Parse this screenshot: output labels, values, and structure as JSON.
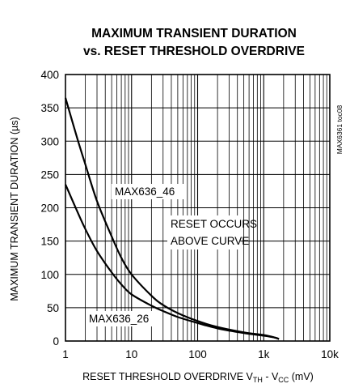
{
  "chart_data": {
    "type": "line",
    "title_line1": "MAXIMUM TRANSIENT DURATION",
    "title_line2": "vs. RESET THRESHOLD OVERDRIVE",
    "xlabel": "RESET THRESHOLD OVERDRIVE V",
    "xlabel_parts": {
      "a": "RESET THRESHOLD OVERDRIVE V",
      "a_sub": "TH",
      "b": " - V",
      "b_sub": "CC",
      "c": " (mV)"
    },
    "ylabel": "MAXIMUM TRANSIENT DURATION (µs)",
    "side_label": "MAX6361 toc08",
    "x_scale": "log",
    "xlim": [
      1,
      10000
    ],
    "ylim": [
      0,
      400
    ],
    "x_ticks": [
      {
        "value": 1,
        "label": "1"
      },
      {
        "value": 10,
        "label": "10"
      },
      {
        "value": 100,
        "label": "100"
      },
      {
        "value": 1000,
        "label": "1k"
      },
      {
        "value": 10000,
        "label": "10k"
      }
    ],
    "y_ticks": [
      0,
      50,
      100,
      150,
      200,
      250,
      300,
      350,
      400
    ],
    "grid": true,
    "series": [
      {
        "name": "MAX636_46",
        "x": [
          1,
          1.5,
          2,
          3,
          5,
          7,
          10,
          20,
          30,
          50,
          100,
          200,
          500,
          1000,
          1500,
          1700
        ],
        "values": [
          365,
          305,
          265,
          210,
          157,
          125,
          100,
          68,
          54,
          42,
          30,
          21,
          13,
          9,
          5,
          3
        ]
      },
      {
        "name": "MAX636_26",
        "x": [
          1,
          1.5,
          2,
          3,
          5,
          7,
          10,
          20,
          30,
          50,
          100,
          200,
          500,
          1000,
          1500,
          1700
        ],
        "values": [
          235,
          195,
          168,
          135,
          103,
          85,
          70,
          53,
          45,
          36,
          27,
          19,
          12,
          8,
          5,
          3
        ]
      }
    ],
    "annotations": {
      "label_46": "MAX636_46",
      "label_26": "MAX636_26",
      "reset_line1": "RESET OCCURS",
      "reset_line2": "ABOVE CURVE"
    }
  }
}
